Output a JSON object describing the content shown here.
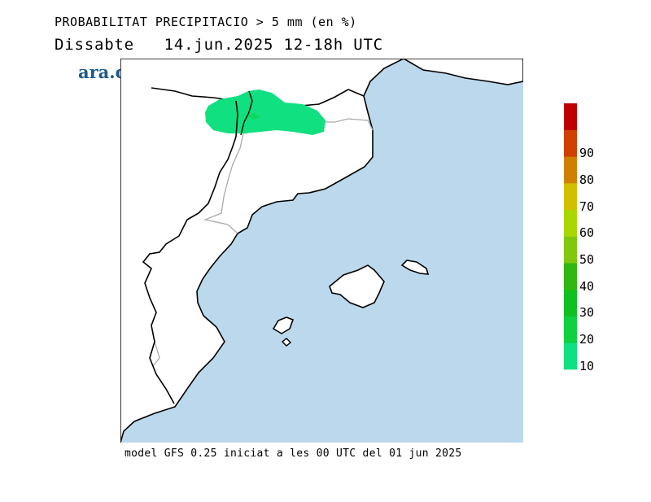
{
  "header": {
    "title": "PROBABILITAT PRECIPITACIO > 5 mm (en %)",
    "day": "Dissabte",
    "date": "14.jun.2025",
    "period": "12-18h UTC"
  },
  "brand": {
    "logo_text": "ara.cat",
    "logo_color": "#1c5a8c"
  },
  "footer": {
    "model_info": "model GFS 0.25 iniciat a les 00 UTC del 01 jun 2025"
  },
  "legend": {
    "labels": [
      "10",
      "20",
      "30",
      "40",
      "50",
      "60",
      "70",
      "80",
      "90"
    ],
    "colors": [
      "#10e080",
      "#10d040",
      "#10c020",
      "#30b810",
      "#80c810",
      "#a8d800",
      "#d0c000",
      "#d08000",
      "#d04000",
      "#c00000"
    ]
  },
  "map": {
    "sea_color": "#bcd8ec",
    "land_color": "#ffffff",
    "region": "Catalunya, País Valencià i Illes Balears",
    "precip_area": {
      "probability_pct": 10,
      "color": "#10e080"
    }
  }
}
